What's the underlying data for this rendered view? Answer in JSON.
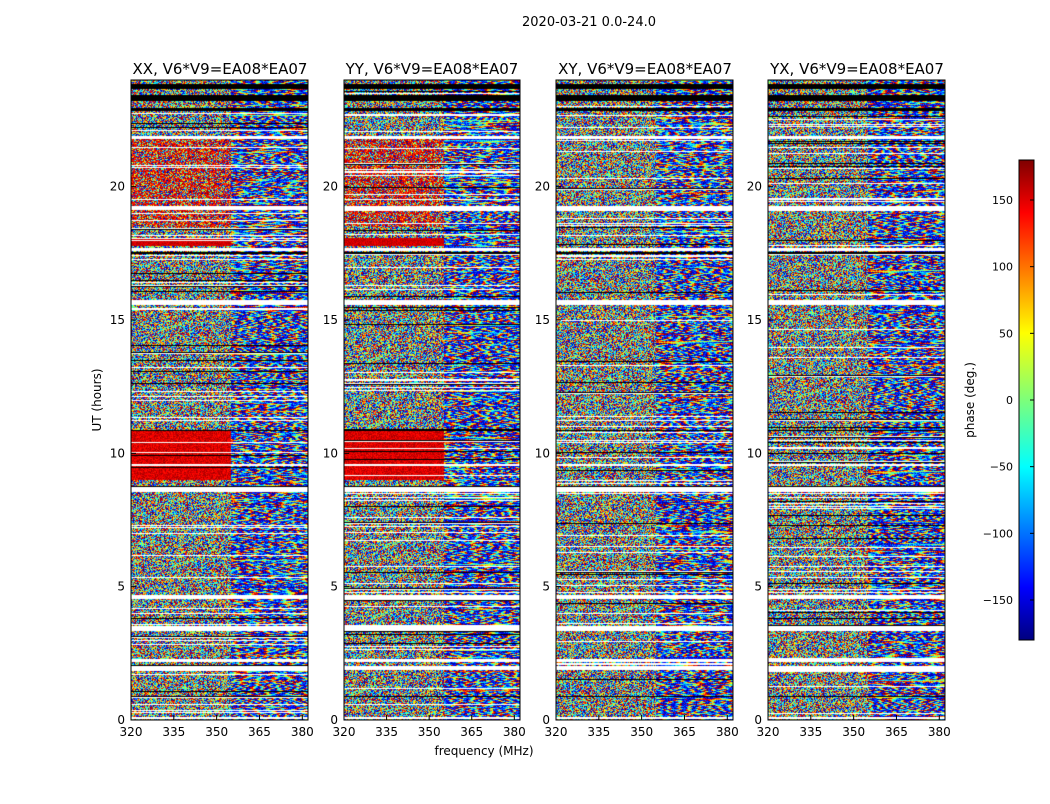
{
  "figure_title": "2020-03-21 0.0-24.0",
  "chart_data": {
    "type": "heatmap",
    "title": "2020-03-21 0.0-24.0",
    "xlabel": "frequency (MHz)",
    "ylabel": "UT (hours)",
    "xlim": [
      320,
      382
    ],
    "ylim": [
      0,
      24
    ],
    "x_ticks": [
      320,
      335,
      350,
      365,
      380
    ],
    "y_ticks": [
      0,
      5,
      10,
      15,
      20
    ],
    "panels": [
      {
        "name": "xx",
        "title": "XX, V6*V9=EA08*EA07"
      },
      {
        "name": "yy",
        "title": "YY, V6*V9=EA08*EA07"
      },
      {
        "name": "xy",
        "title": "XY, V6*V9=EA08*EA07"
      },
      {
        "name": "yx",
        "title": "YX, V6*V9=EA08*EA07"
      }
    ],
    "colorbar": {
      "label": "phase (deg.)",
      "range": [
        -180,
        180
      ],
      "ticks": [
        150,
        100,
        50,
        0,
        -50,
        -100,
        -150
      ],
      "tick_labels": [
        "150",
        "100",
        "50",
        "0",
        "−50",
        "−100",
        "−150"
      ],
      "colormap": "jet"
    },
    "blank_bands_hours": [
      [
        0.05,
        0.12
      ],
      [
        1.9,
        2.05
      ],
      [
        2.2,
        2.32
      ],
      [
        3.35,
        3.55
      ],
      [
        4.55,
        4.7
      ],
      [
        8.55,
        8.75
      ],
      [
        9.55,
        9.62
      ],
      [
        15.6,
        15.78
      ],
      [
        17.6,
        17.72
      ],
      [
        19.15,
        19.3
      ],
      [
        21.8,
        21.9
      ]
    ],
    "flagged_bands_hours": [
      [
        0.88,
        0.92
      ],
      [
        8.72,
        8.8
      ],
      [
        10.85,
        10.9
      ],
      [
        17.5,
        17.55
      ],
      [
        22.85,
        22.95
      ],
      [
        23.25,
        23.45
      ],
      [
        23.7,
        23.88
      ]
    ]
  }
}
